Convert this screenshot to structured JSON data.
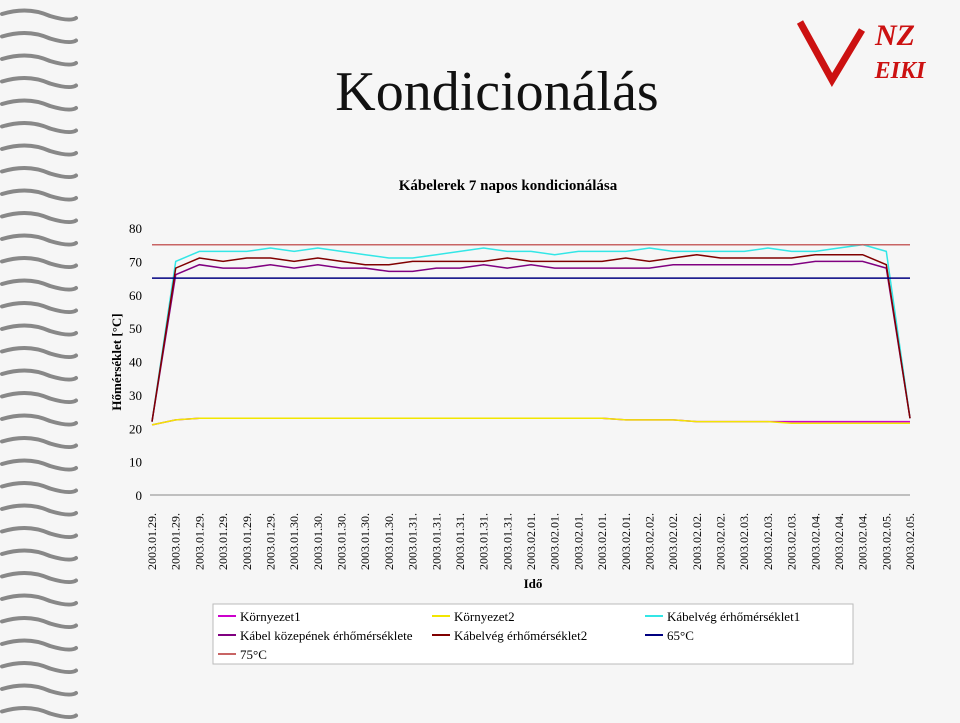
{
  "slide_title": "Kondicionálás",
  "logo": {
    "top": "NZ",
    "bottom": "EIKI"
  },
  "chart_data": {
    "type": "line",
    "title": "Kábelerek 7 napos kondicionálása",
    "y_label": "Hőmérséklet [°C]",
    "x_label": "Idő",
    "categories": [
      "2003.01.29.",
      "2003.01.29.",
      "2003.01.29.",
      "2003.01.29.",
      "2003.01.29.",
      "2003.01.29.",
      "2003.01.30.",
      "2003.01.30.",
      "2003.01.30.",
      "2003.01.30.",
      "2003.01.30.",
      "2003.01.31.",
      "2003.01.31.",
      "2003.01.31.",
      "2003.01.31.",
      "2003.01.31.",
      "2003.02.01.",
      "2003.02.01.",
      "2003.02.01.",
      "2003.02.01.",
      "2003.02.01.",
      "2003.02.02.",
      "2003.02.02.",
      "2003.02.02.",
      "2003.02.02.",
      "2003.02.03.",
      "2003.02.03.",
      "2003.02.03.",
      "2003.02.04.",
      "2003.02.04.",
      "2003.02.04.",
      "2003.02.05.",
      "2003.02.05."
    ],
    "ylim": [
      0,
      80
    ],
    "yticks": [
      0,
      10,
      20,
      30,
      40,
      50,
      60,
      70,
      80
    ],
    "grid": false,
    "series": [
      {
        "name": "Környezet1",
        "color": "#cc00cc",
        "values": [
          21,
          22.5,
          23,
          23,
          23,
          23,
          23,
          23,
          23,
          23,
          23,
          23,
          23,
          23,
          23,
          23,
          23,
          23,
          23,
          23,
          22.5,
          22.5,
          22.5,
          22,
          22,
          22,
          22,
          22,
          22,
          22,
          22,
          22,
          22
        ]
      },
      {
        "name": "Környezet2",
        "color": "#f2e600",
        "values": [
          21,
          22.5,
          23,
          23,
          23,
          23,
          23,
          23,
          23,
          23,
          23,
          23,
          23,
          23,
          23,
          23,
          23,
          23,
          23,
          23,
          22.5,
          22.5,
          22.5,
          22,
          22,
          22,
          22,
          21.5,
          21.5,
          21.5,
          21.5,
          21.5,
          21.5
        ]
      },
      {
        "name": "Kábelvég érhőmérséklet1",
        "color": "#33e6e6",
        "values": [
          22,
          70,
          73,
          73,
          73,
          74,
          73,
          74,
          73,
          72,
          71,
          71,
          72,
          73,
          74,
          73,
          73,
          72,
          73,
          73,
          73,
          74,
          73,
          73,
          73,
          73,
          74,
          73,
          73,
          74,
          75,
          73,
          23
        ]
      },
      {
        "name": "Kábel közepének érhőmérséklete",
        "color": "#800080",
        "values": [
          22,
          66,
          69,
          68,
          68,
          69,
          68,
          69,
          68,
          68,
          67,
          67,
          68,
          68,
          69,
          68,
          69,
          68,
          68,
          68,
          68,
          68,
          69,
          69,
          69,
          69,
          69,
          69,
          70,
          70,
          70,
          68,
          23
        ]
      },
      {
        "name": "Kábelvég érhőmérséklet2",
        "color": "#800000",
        "values": [
          22,
          68,
          71,
          70,
          71,
          71,
          70,
          71,
          70,
          69,
          69,
          70,
          70,
          70,
          70,
          71,
          70,
          70,
          70,
          70,
          71,
          70,
          71,
          72,
          71,
          71,
          71,
          71,
          72,
          72,
          72,
          69,
          23
        ]
      },
      {
        "name": "65°C",
        "color": "#000080",
        "values": [
          65,
          65,
          65,
          65,
          65,
          65,
          65,
          65,
          65,
          65,
          65,
          65,
          65,
          65,
          65,
          65,
          65,
          65,
          65,
          65,
          65,
          65,
          65,
          65,
          65,
          65,
          65,
          65,
          65,
          65,
          65,
          65,
          65
        ]
      },
      {
        "name": "75°C",
        "color": "#c86464",
        "values": [
          75,
          75,
          75,
          75,
          75,
          75,
          75,
          75,
          75,
          75,
          75,
          75,
          75,
          75,
          75,
          75,
          75,
          75,
          75,
          75,
          75,
          75,
          75,
          75,
          75,
          75,
          75,
          75,
          75,
          75,
          75,
          75,
          75
        ]
      }
    ]
  }
}
